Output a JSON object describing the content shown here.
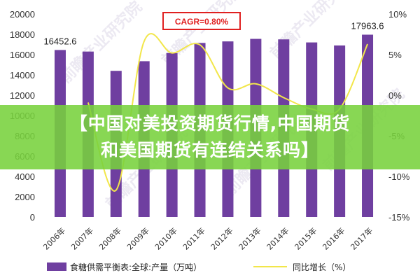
{
  "colors": {
    "bar": "#6f3fa0",
    "line": "#f2e64a",
    "banner": "#78d23c",
    "cagr_box": "#e02020"
  },
  "banner": {
    "line1": "【中国对美投资期货行情,中国期货",
    "line2": "和美国期货有连结关系吗】"
  },
  "cagr_label": "CAGR=0.80%",
  "watermark": "前瞻产业研究院",
  "chart_data": {
    "type": "bar",
    "categories": [
      "2006年",
      "2007年",
      "2008年",
      "2009年",
      "2010年",
      "2011年",
      "2012年",
      "2013年",
      "2014年",
      "2015年",
      "2016年",
      "2017年"
    ],
    "series": [
      {
        "name": "食糖供需平衡表:全球:产量（万吨）",
        "type": "bar",
        "axis": "left",
        "values": [
          16452.6,
          16300,
          14400,
          15350,
          16150,
          17150,
          17300,
          17550,
          17500,
          17200,
          16900,
          17963.6
        ]
      },
      {
        "name": "同比增长（%）",
        "type": "line",
        "axis": "right",
        "values": [
          null,
          -0.9,
          -11.7,
          6.6,
          5.2,
          6.2,
          0.9,
          1.4,
          -0.3,
          -1.7,
          -1.7,
          6.3
        ]
      }
    ],
    "data_labels": [
      {
        "index": 0,
        "text": "16452.6"
      },
      {
        "index": 11,
        "text": "17963.6"
      }
    ],
    "left_axis": {
      "ylim": [
        0,
        20000
      ],
      "ticks": [
        "0",
        "2000",
        "4000",
        "6000",
        "8000",
        "10000",
        "12000",
        "14000",
        "16000",
        "18000",
        "20000"
      ]
    },
    "right_axis": {
      "ylim": [
        -15,
        10
      ],
      "ticks": [
        "-15%",
        "-10%",
        "-5%",
        "0%",
        "5%",
        "10%"
      ]
    },
    "legend_position": "bottom",
    "grid": false
  }
}
